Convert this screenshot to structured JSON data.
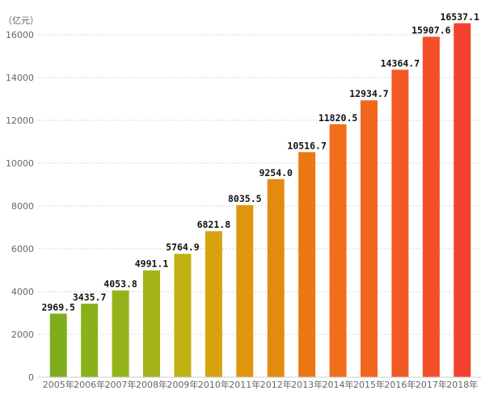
{
  "chart_data": {
    "type": "bar",
    "unit_label": "（亿元）",
    "categories": [
      "2005年",
      "2006年",
      "2007年",
      "2008年",
      "2009年",
      "2010年",
      "2011年",
      "2012年",
      "2013年",
      "2014年",
      "2015年",
      "2016年",
      "2017年",
      "2018年"
    ],
    "values": [
      2969.5,
      3435.7,
      4053.8,
      4991.1,
      5764.9,
      6821.8,
      8035.5,
      9254.0,
      10516.7,
      11820.5,
      12934.7,
      14364.7,
      15907.6,
      16537.1
    ],
    "data_labels": [
      "2969.5",
      "3435.7",
      "4053.8",
      "4991.1",
      "5764.9",
      "6821.8",
      "8035.5",
      "9254.0",
      "10516.7",
      "11820.5",
      "12934.7",
      "14364.7",
      "15907.6",
      "16537.1"
    ],
    "yticks": [
      "0",
      "2000",
      "4000",
      "6000",
      "8000",
      "10000",
      "12000",
      "14000",
      "16000"
    ],
    "ylim": [
      0,
      17000
    ],
    "grid": true,
    "bar_colors": [
      "#7fad1e",
      "#89b11c",
      "#94b31a",
      "#a2b319",
      "#c0b014",
      "#d6a30f",
      "#df960f",
      "#e58a10",
      "#ec7815",
      "#ef6e1a",
      "#f0661d",
      "#f25a24",
      "#f3502a",
      "#f4412f"
    ]
  }
}
